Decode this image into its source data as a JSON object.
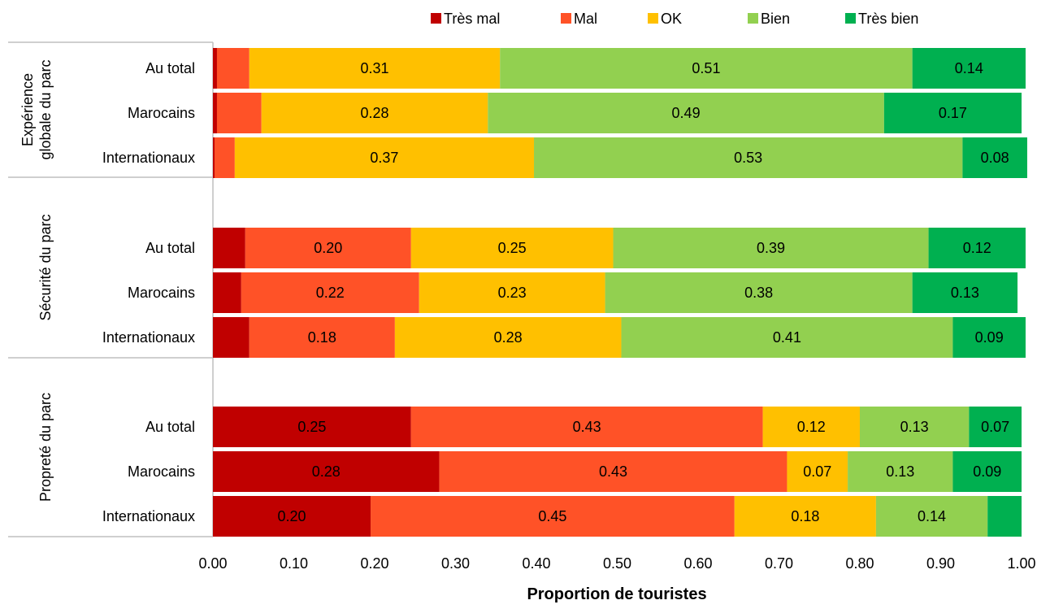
{
  "chart_data": {
    "type": "bar",
    "orientation": "horizontal",
    "stacked": true,
    "xlabel": "Proportion de touristes",
    "xlim": [
      0,
      1
    ],
    "xticks": [
      "0.00",
      "0.10",
      "0.20",
      "0.30",
      "0.40",
      "0.50",
      "0.60",
      "0.70",
      "0.80",
      "0.90",
      "1.00"
    ],
    "legend_position": "top",
    "grid": false,
    "series": [
      {
        "name": "Très mal",
        "color": "#c00000"
      },
      {
        "name": "Mal",
        "color": "#ff5227"
      },
      {
        "name": "OK",
        "color": "#ffc000"
      },
      {
        "name": "Bien",
        "color": "#92d050"
      },
      {
        "name": "Très bien",
        "color": "#00b050"
      }
    ],
    "groups": [
      {
        "name": "Expérience globale du parc",
        "rows": [
          {
            "label": "Au total",
            "values": [
              0.005,
              0.04,
              0.31,
              0.51,
              0.14
            ],
            "labels": [
              "",
              "",
              "0.31",
              "0.51",
              "0.14"
            ]
          },
          {
            "label": "Marocains",
            "values": [
              0.005,
              0.055,
              0.28,
              0.49,
              0.17
            ],
            "labels": [
              "",
              "",
              "0.28",
              "0.49",
              "0.17"
            ]
          },
          {
            "label": "Internationaux",
            "values": [
              0.002,
              0.025,
              0.37,
              0.53,
              0.08
            ],
            "labels": [
              "",
              "",
              "0.37",
              "0.53",
              "0.08"
            ]
          }
        ]
      },
      {
        "name": "Sécurité du parc",
        "rows": [
          {
            "label": "Au total",
            "values": [
              0.04,
              0.205,
              0.25,
              0.39,
              0.12
            ],
            "labels": [
              "",
              "0.20",
              "0.25",
              "0.39",
              "0.12"
            ]
          },
          {
            "label": "Marocains",
            "values": [
              0.035,
              0.22,
              0.23,
              0.38,
              0.13
            ],
            "labels": [
              "",
              "0.22",
              "0.23",
              "0.38",
              "0.13"
            ]
          },
          {
            "label": "Internationaux",
            "values": [
              0.045,
              0.18,
              0.28,
              0.41,
              0.09
            ],
            "labels": [
              "",
              "0.18",
              "0.28",
              "0.41",
              "0.09"
            ]
          }
        ]
      },
      {
        "name": "Propreté du parc",
        "rows": [
          {
            "label": "Au total",
            "values": [
              0.245,
              0.435,
              0.12,
              0.135,
              0.065
            ],
            "labels": [
              "0.25",
              "0.43",
              "0.12",
              "0.13",
              "0.07"
            ]
          },
          {
            "label": "Marocains",
            "values": [
              0.28,
              0.43,
              0.075,
              0.13,
              0.085
            ],
            "labels": [
              "0.28",
              "0.43",
              "0.07",
              "0.13",
              "0.09"
            ]
          },
          {
            "label": "Internationaux",
            "values": [
              0.195,
              0.45,
              0.175,
              0.138,
              0.042
            ],
            "labels": [
              "0.20",
              "0.45",
              "0.18",
              "0.14",
              ""
            ]
          }
        ]
      }
    ]
  }
}
